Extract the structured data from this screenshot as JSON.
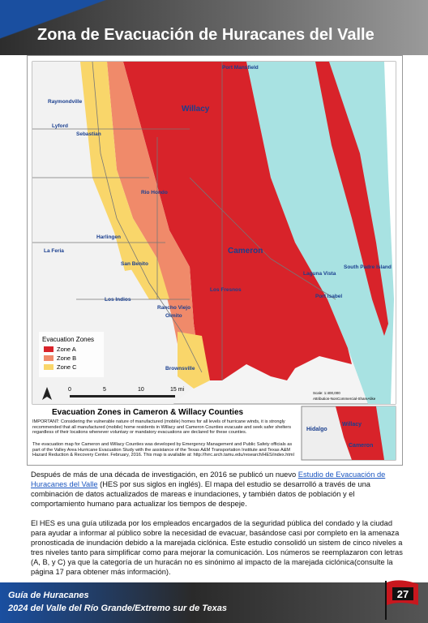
{
  "header": {
    "title": "Zona de Evacuación de Huracanes del Valle"
  },
  "map": {
    "places": [
      "Port Mansfield",
      "Willacy",
      "Raymondville",
      "Lyford",
      "Sebastian",
      "Rio Hondo",
      "Harlingen",
      "La Feria",
      "San Benito",
      "Cameron",
      "Laguna Vista",
      "South Padre Island",
      "Port Isabel",
      "Los Fresnos",
      "Los Indios",
      "Rancho Viejo",
      "Olmito",
      "Brownsville"
    ],
    "legend": {
      "title": "Evacuation Zones",
      "items": [
        "Zone A",
        "Zone B",
        "Zone C"
      ]
    },
    "scale_labels": [
      "0",
      "5",
      "10",
      "15 mi"
    ],
    "scale_text": "Scale: 1:400,000",
    "attribution": "Attribution-NonCommercial-ShareAlike",
    "caption_title": "Evacuation Zones in Cameron & Willacy Counties",
    "caption_important": "IMPORTANT: Considering the vulnerable nature of manufactured (mobile) homes for all levels of hurricane winds, it is strongly recommended that all manufactured (mobile) home residents in Willacy and Cameron Counties evacuate and seek safer shelters regardless of their locations whenever voluntary or mandatory evacuations are declared for these counties.",
    "caption_note": "The evacuation map for Cameron and Willacy Counties was developed by Emergency Management and Public Safety officials as part of the Valley Area Hurricane Evacuation Study with the assistance of the Texas A&M Transportation Institute and Texas A&M Hazard Reduction & Recovery Center. February, 2016. This map is available at: http://hrrc.arch.tamu.edu/research/HES/index.html",
    "inset": [
      "Hidalgo",
      "Willacy",
      "Cameron"
    ]
  },
  "body": {
    "paragraph1": {
      "before": "Después de más de una década de investigación, en 2016 se publicó un nuevo",
      "link": "Estudio de Evacuación de Huracanes del Valle",
      "after": "(HES por sus siglos en inglés). El mapa del estudio se desarrolló a través de una combinación de datos actualizados de mareas e inundaciones, y también datos de población y el comportamiento humano para actualizar los tiempos de despeje."
    },
    "paragraph2": "El HES es una guía utilizada por los empleados encargados de la seguridad pública del condado y la ciudad para ayudar a informar al público sobre la necesidad de evacuar, basándose casi por completo en la amenaza pronosticada de inundación debido a la marejada ciclónica. Este estudio consolidó un sistem de cinco niveles a tres niveles tanto para simplificar como para mejorar la comunicación. Los números se reemplazaron con letras (A, B, y C) ya que la categoría de un huracán no es sinónimo al impacto de la marejada ciclónica(consulte la página 17 para obtener más información)."
  },
  "footer": {
    "line1": "Guía de Huracanes",
    "line2": "2024 del Valle del Río Grande/Extremo sur de Texas",
    "page": "27"
  }
}
